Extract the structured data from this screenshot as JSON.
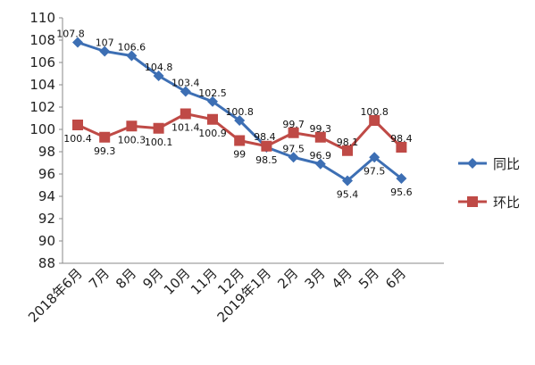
{
  "chart_data": {
    "type": "line",
    "categories": [
      "2018年6月",
      "7月",
      "8月",
      "9月",
      "10月",
      "11月",
      "12月",
      "2019年1月",
      "2月",
      "3月",
      "4月",
      "5月",
      "6月"
    ],
    "series": [
      {
        "name": "同比",
        "color": "#3d6fb4",
        "marker": "diamond",
        "values": [
          107.8,
          107,
          106.6,
          104.8,
          103.4,
          102.5,
          100.8,
          98.4,
          97.5,
          96.9,
          95.4,
          97.5,
          95.6
        ],
        "labels": [
          "107.8",
          "107",
          "106.6",
          "104.8",
          "103.4",
          "102.5",
          "100.8",
          "98.4",
          "97.5",
          "96.9",
          "95.4",
          "97.5",
          "95.6"
        ]
      },
      {
        "name": "环比",
        "color": "#bf4a46",
        "marker": "square",
        "values": [
          100.4,
          99.3,
          100.3,
          100.1,
          101.4,
          100.9,
          99,
          98.5,
          99.7,
          99.3,
          98.1,
          100.8,
          98.4
        ],
        "labels": [
          "100.4",
          "99.3",
          "100.3",
          "100.1",
          "101.4",
          "100.9",
          "99",
          "98.5",
          "99.7",
          "99.3",
          "98.1",
          "100.8",
          "98.4"
        ]
      }
    ],
    "ylim": [
      88,
      110
    ],
    "yticks": [
      88,
      90,
      92,
      94,
      96,
      98,
      100,
      102,
      104,
      106,
      108,
      110
    ],
    "grid": false,
    "legend_position": "right"
  }
}
